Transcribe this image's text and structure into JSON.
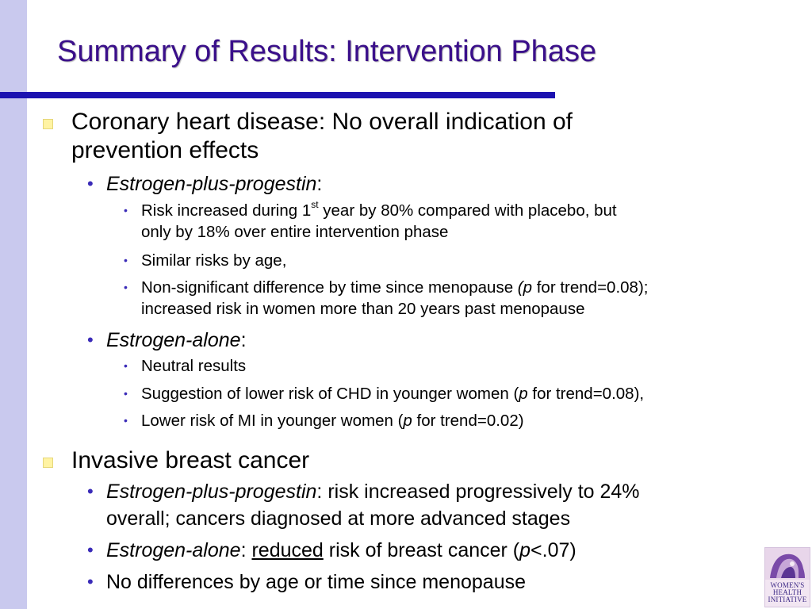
{
  "title": "Summary of Results: Intervention Phase",
  "colors": {
    "title": "#3a0f8a",
    "rule": "#1c12b0",
    "side_band": "#c9c9ee",
    "bullet_square": "#fff3a3",
    "bullet_dot": "#3a2bb8"
  },
  "sections": [
    {
      "text": "Coronary heart disease: No overall indication of prevention effects",
      "line1": "Coronary heart disease: No overall indication of",
      "line2": "prevention effects",
      "items": [
        {
          "label": "Estrogen-plus-progestin",
          "suffix": ":",
          "points": [
            {
              "a": "Risk increased during 1",
              "sup": "st",
              "b": " year by 80% compared with placebo, but",
              "line2": "only by 18% over entire intervention phase"
            },
            {
              "text": "Similar risks by age,"
            },
            {
              "a": "Non-significant difference by time since menopause ",
              "p": "(p",
              "b": " for trend=0.08);",
              "line2": "increased risk in women more than 20 years past menopause"
            }
          ]
        },
        {
          "label": "Estrogen-alone",
          "suffix": ":",
          "points": [
            {
              "text": "Neutral results"
            },
            {
              "a": "Suggestion of lower risk of CHD in younger women (",
              "p": "p",
              "b": " for trend=0.08),"
            },
            {
              "a": "Lower risk of MI in younger women (",
              "p": "p",
              "b": " for trend=0.02)"
            }
          ]
        }
      ]
    },
    {
      "text": "Invasive breast cancer",
      "items": [
        {
          "label": "Estrogen-plus-progestin",
          "rest": ": risk increased progressively to 24%",
          "line2": "overall; cancers diagnosed at more advanced stages"
        },
        {
          "label": "Estrogen-alone",
          "sep": ": ",
          "underlined": "reduced",
          "rest": " risk of breast cancer (",
          "p": "p",
          "end": "<.07)"
        },
        {
          "text": "No differences by age or time since menopause"
        }
      ]
    }
  ],
  "logo": {
    "line1": "WOMEN'S",
    "line2": "HEALTH",
    "line3": "INITIATIVE"
  },
  "icons": {
    "level1": "square-bullet-icon",
    "level2": "dot-bullet-icon",
    "level3": "small-dot-bullet-icon"
  }
}
